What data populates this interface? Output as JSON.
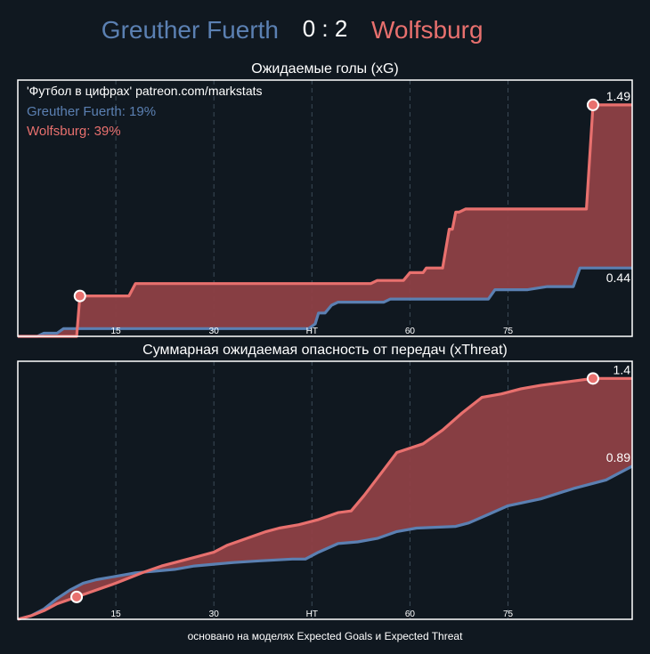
{
  "header": {
    "home_team": "Greuther Fuerth",
    "away_team": "Wolfsburg",
    "score": "0 : 2"
  },
  "colors": {
    "background": "#101820",
    "home": "#5b80b2",
    "away": "#e8706e",
    "fill": "#8e4046",
    "frame": "#ffffff",
    "grid": "#3b4a56"
  },
  "footer": {
    "credit": "основано на моделях Expected Goals и Expected Threat"
  },
  "chart_data": [
    {
      "type": "area",
      "title": "Ожидаемые голы (xG)",
      "annotation": "'Футбол в цифрах' patreon.com/markstats",
      "legend": [
        {
          "text": "Greuther Fuerth: 19%",
          "color": "#5b80b2"
        },
        {
          "text": "Wolfsburg: 39%",
          "color": "#e8706e"
        }
      ],
      "legend_position": "top-left",
      "x_ticks": [
        {
          "x": 15,
          "label": "15"
        },
        {
          "x": 30,
          "label": "30"
        },
        {
          "x": 45,
          "label": "HT"
        },
        {
          "x": 60,
          "label": "60"
        },
        {
          "x": 75,
          "label": "75"
        }
      ],
      "xlim": [
        0,
        94
      ],
      "ylim": [
        0,
        1.65
      ],
      "grid": "vertical dashed",
      "series": [
        {
          "name": "Greuther Fuerth",
          "values": [
            [
              0,
              0
            ],
            [
              3,
              0
            ],
            [
              4,
              0.02
            ],
            [
              6,
              0.02
            ],
            [
              7,
              0.05
            ],
            [
              44.5,
              0.05
            ],
            [
              45.5,
              0.08
            ],
            [
              46,
              0.15
            ],
            [
              47,
              0.15
            ],
            [
              48,
              0.2
            ],
            [
              49,
              0.22
            ],
            [
              56,
              0.22
            ],
            [
              57,
              0.24
            ],
            [
              72,
              0.24
            ],
            [
              73,
              0.3
            ],
            [
              78,
              0.3
            ],
            [
              81,
              0.32
            ],
            [
              85,
              0.32
            ],
            [
              86,
              0.44
            ],
            [
              94,
              0.44
            ]
          ],
          "end_label": "0.44"
        },
        {
          "name": "Wolfsburg",
          "values": [
            [
              0,
              0
            ],
            [
              9,
              0
            ],
            [
              9.5,
              0.26
            ],
            [
              17,
              0.26
            ],
            [
              18,
              0.34
            ],
            [
              54,
              0.34
            ],
            [
              55,
              0.36
            ],
            [
              59,
              0.36
            ],
            [
              60,
              0.41
            ],
            [
              62,
              0.41
            ],
            [
              62.5,
              0.44
            ],
            [
              65,
              0.44
            ],
            [
              66,
              0.69
            ],
            [
              66.5,
              0.69
            ],
            [
              67,
              0.8
            ],
            [
              67.5,
              0.8
            ],
            [
              68.5,
              0.82
            ],
            [
              87,
              0.82
            ],
            [
              88,
              1.49
            ],
            [
              94,
              1.49
            ]
          ],
          "end_label": "1.49",
          "markers": [
            [
              9.5,
              0.26
            ],
            [
              88,
              1.49
            ]
          ]
        }
      ]
    },
    {
      "type": "area",
      "title": "Суммарная ожидаемая опасность от передач (xThreat)",
      "x_ticks": [
        {
          "x": 15,
          "label": "15"
        },
        {
          "x": 30,
          "label": "30"
        },
        {
          "x": 45,
          "label": "HT"
        },
        {
          "x": 60,
          "label": "60"
        },
        {
          "x": 75,
          "label": "75"
        }
      ],
      "xlim": [
        0,
        94
      ],
      "ylim": [
        0,
        1.5
      ],
      "grid": "vertical dashed",
      "series": [
        {
          "name": "Greuther Fuerth",
          "values": [
            [
              0,
              0
            ],
            [
              2,
              0.02
            ],
            [
              4,
              0.06
            ],
            [
              6,
              0.12
            ],
            [
              8,
              0.17
            ],
            [
              10,
              0.21
            ],
            [
              12,
              0.23
            ],
            [
              15,
              0.25
            ],
            [
              18,
              0.27
            ],
            [
              21,
              0.28
            ],
            [
              24,
              0.29
            ],
            [
              27,
              0.31
            ],
            [
              30,
              0.32
            ],
            [
              33,
              0.33
            ],
            [
              37,
              0.34
            ],
            [
              42,
              0.35
            ],
            [
              44,
              0.35
            ],
            [
              46,
              0.39
            ],
            [
              49,
              0.44
            ],
            [
              52,
              0.45
            ],
            [
              55,
              0.47
            ],
            [
              58,
              0.51
            ],
            [
              61,
              0.53
            ],
            [
              67,
              0.54
            ],
            [
              69,
              0.56
            ],
            [
              72,
              0.61
            ],
            [
              75,
              0.66
            ],
            [
              80,
              0.7
            ],
            [
              85,
              0.76
            ],
            [
              90,
              0.81
            ],
            [
              94,
              0.89
            ]
          ],
          "end_label": "0.89"
        },
        {
          "name": "Wolfsburg",
          "values": [
            [
              0,
              0
            ],
            [
              2,
              0.02
            ],
            [
              4,
              0.05
            ],
            [
              6,
              0.09
            ],
            [
              9,
              0.13
            ],
            [
              12,
              0.17
            ],
            [
              15,
              0.21
            ],
            [
              17,
              0.24
            ],
            [
              19,
              0.27
            ],
            [
              22,
              0.31
            ],
            [
              25,
              0.34
            ],
            [
              28,
              0.37
            ],
            [
              30,
              0.39
            ],
            [
              32,
              0.43
            ],
            [
              35,
              0.47
            ],
            [
              38,
              0.51
            ],
            [
              40,
              0.53
            ],
            [
              43,
              0.55
            ],
            [
              46,
              0.58
            ],
            [
              49,
              0.62
            ],
            [
              51,
              0.63
            ],
            [
              53,
              0.72
            ],
            [
              56,
              0.87
            ],
            [
              58,
              0.97
            ],
            [
              62,
              1.02
            ],
            [
              65,
              1.1
            ],
            [
              68,
              1.2
            ],
            [
              71,
              1.29
            ],
            [
              74,
              1.31
            ],
            [
              77,
              1.34
            ],
            [
              80,
              1.36
            ],
            [
              84,
              1.38
            ],
            [
              88,
              1.4
            ],
            [
              94,
              1.4
            ]
          ],
          "end_label": "1.4",
          "markers": [
            [
              9,
              0.13
            ],
            [
              88,
              1.4
            ]
          ]
        }
      ]
    }
  ]
}
